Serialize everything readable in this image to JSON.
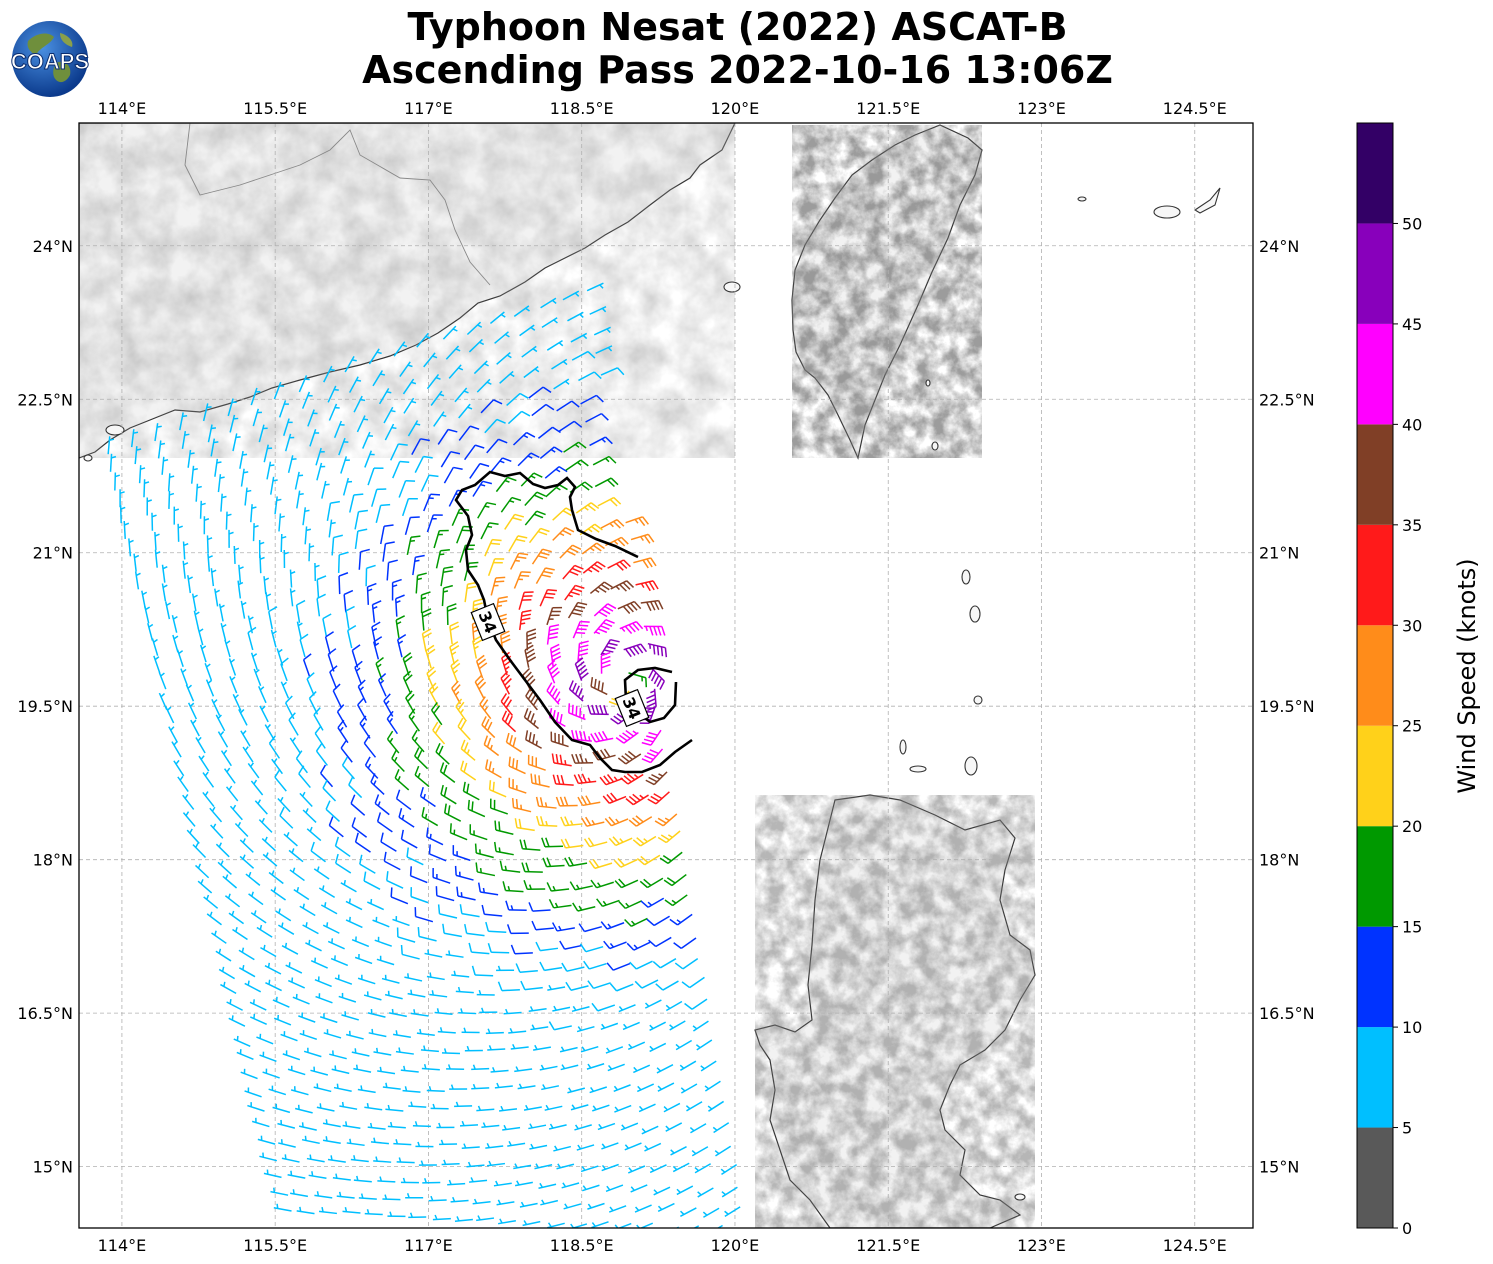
{
  "title": {
    "line1": "Typhoon Nesat (2022) ASCAT-B",
    "line2": "Ascending Pass 2022-10-16 13:06Z"
  },
  "logo": {
    "text": "COAPS",
    "icon": "globe-logo-icon"
  },
  "map": {
    "lon_ticks": [
      "114°E",
      "115.5°E",
      "117°E",
      "118.5°E",
      "120°E",
      "121.5°E",
      "123°E",
      "124.5°E"
    ],
    "lat_ticks": [
      "24°N",
      "22.5°N",
      "21°N",
      "19.5°N",
      "18°N",
      "16.5°N",
      "15°N"
    ],
    "extent": {
      "lon": [
        113.58,
        125.07
      ],
      "lat": [
        14.4,
        25.2
      ]
    },
    "gridlines": true,
    "background": "topography grayscale (terrain shading)",
    "contour_label": "34",
    "contour_description": "34-knot wind radius contour"
  },
  "colorbar": {
    "label": "Wind Speed (knots)",
    "ticks": [
      "0",
      "5",
      "10",
      "15",
      "20",
      "25",
      "30",
      "35",
      "40",
      "45",
      "50"
    ],
    "bins": [
      {
        "range": [
          0,
          5
        ],
        "color": "#595959"
      },
      {
        "range": [
          5,
          10
        ],
        "color": "#00bfff"
      },
      {
        "range": [
          10,
          15
        ],
        "color": "#0033ff"
      },
      {
        "range": [
          15,
          20
        ],
        "color": "#009900"
      },
      {
        "range": [
          20,
          25
        ],
        "color": "#ffd11a"
      },
      {
        "range": [
          25,
          30
        ],
        "color": "#ff8c1a"
      },
      {
        "range": [
          30,
          35
        ],
        "color": "#ff1a1a"
      },
      {
        "range": [
          35,
          40
        ],
        "color": "#803f26"
      },
      {
        "range": [
          40,
          45
        ],
        "color": "#ff00ff"
      },
      {
        "range": [
          45,
          50
        ],
        "color": "#8800bb"
      },
      {
        "range": [
          50,
          55
        ],
        "color": "#330066"
      }
    ]
  },
  "wind_field": {
    "center": {
      "lon": 118.9,
      "lat": 19.75
    },
    "peak_speed_knots": 48,
    "rotation": "cyclonic (counterclockwise)"
  }
}
